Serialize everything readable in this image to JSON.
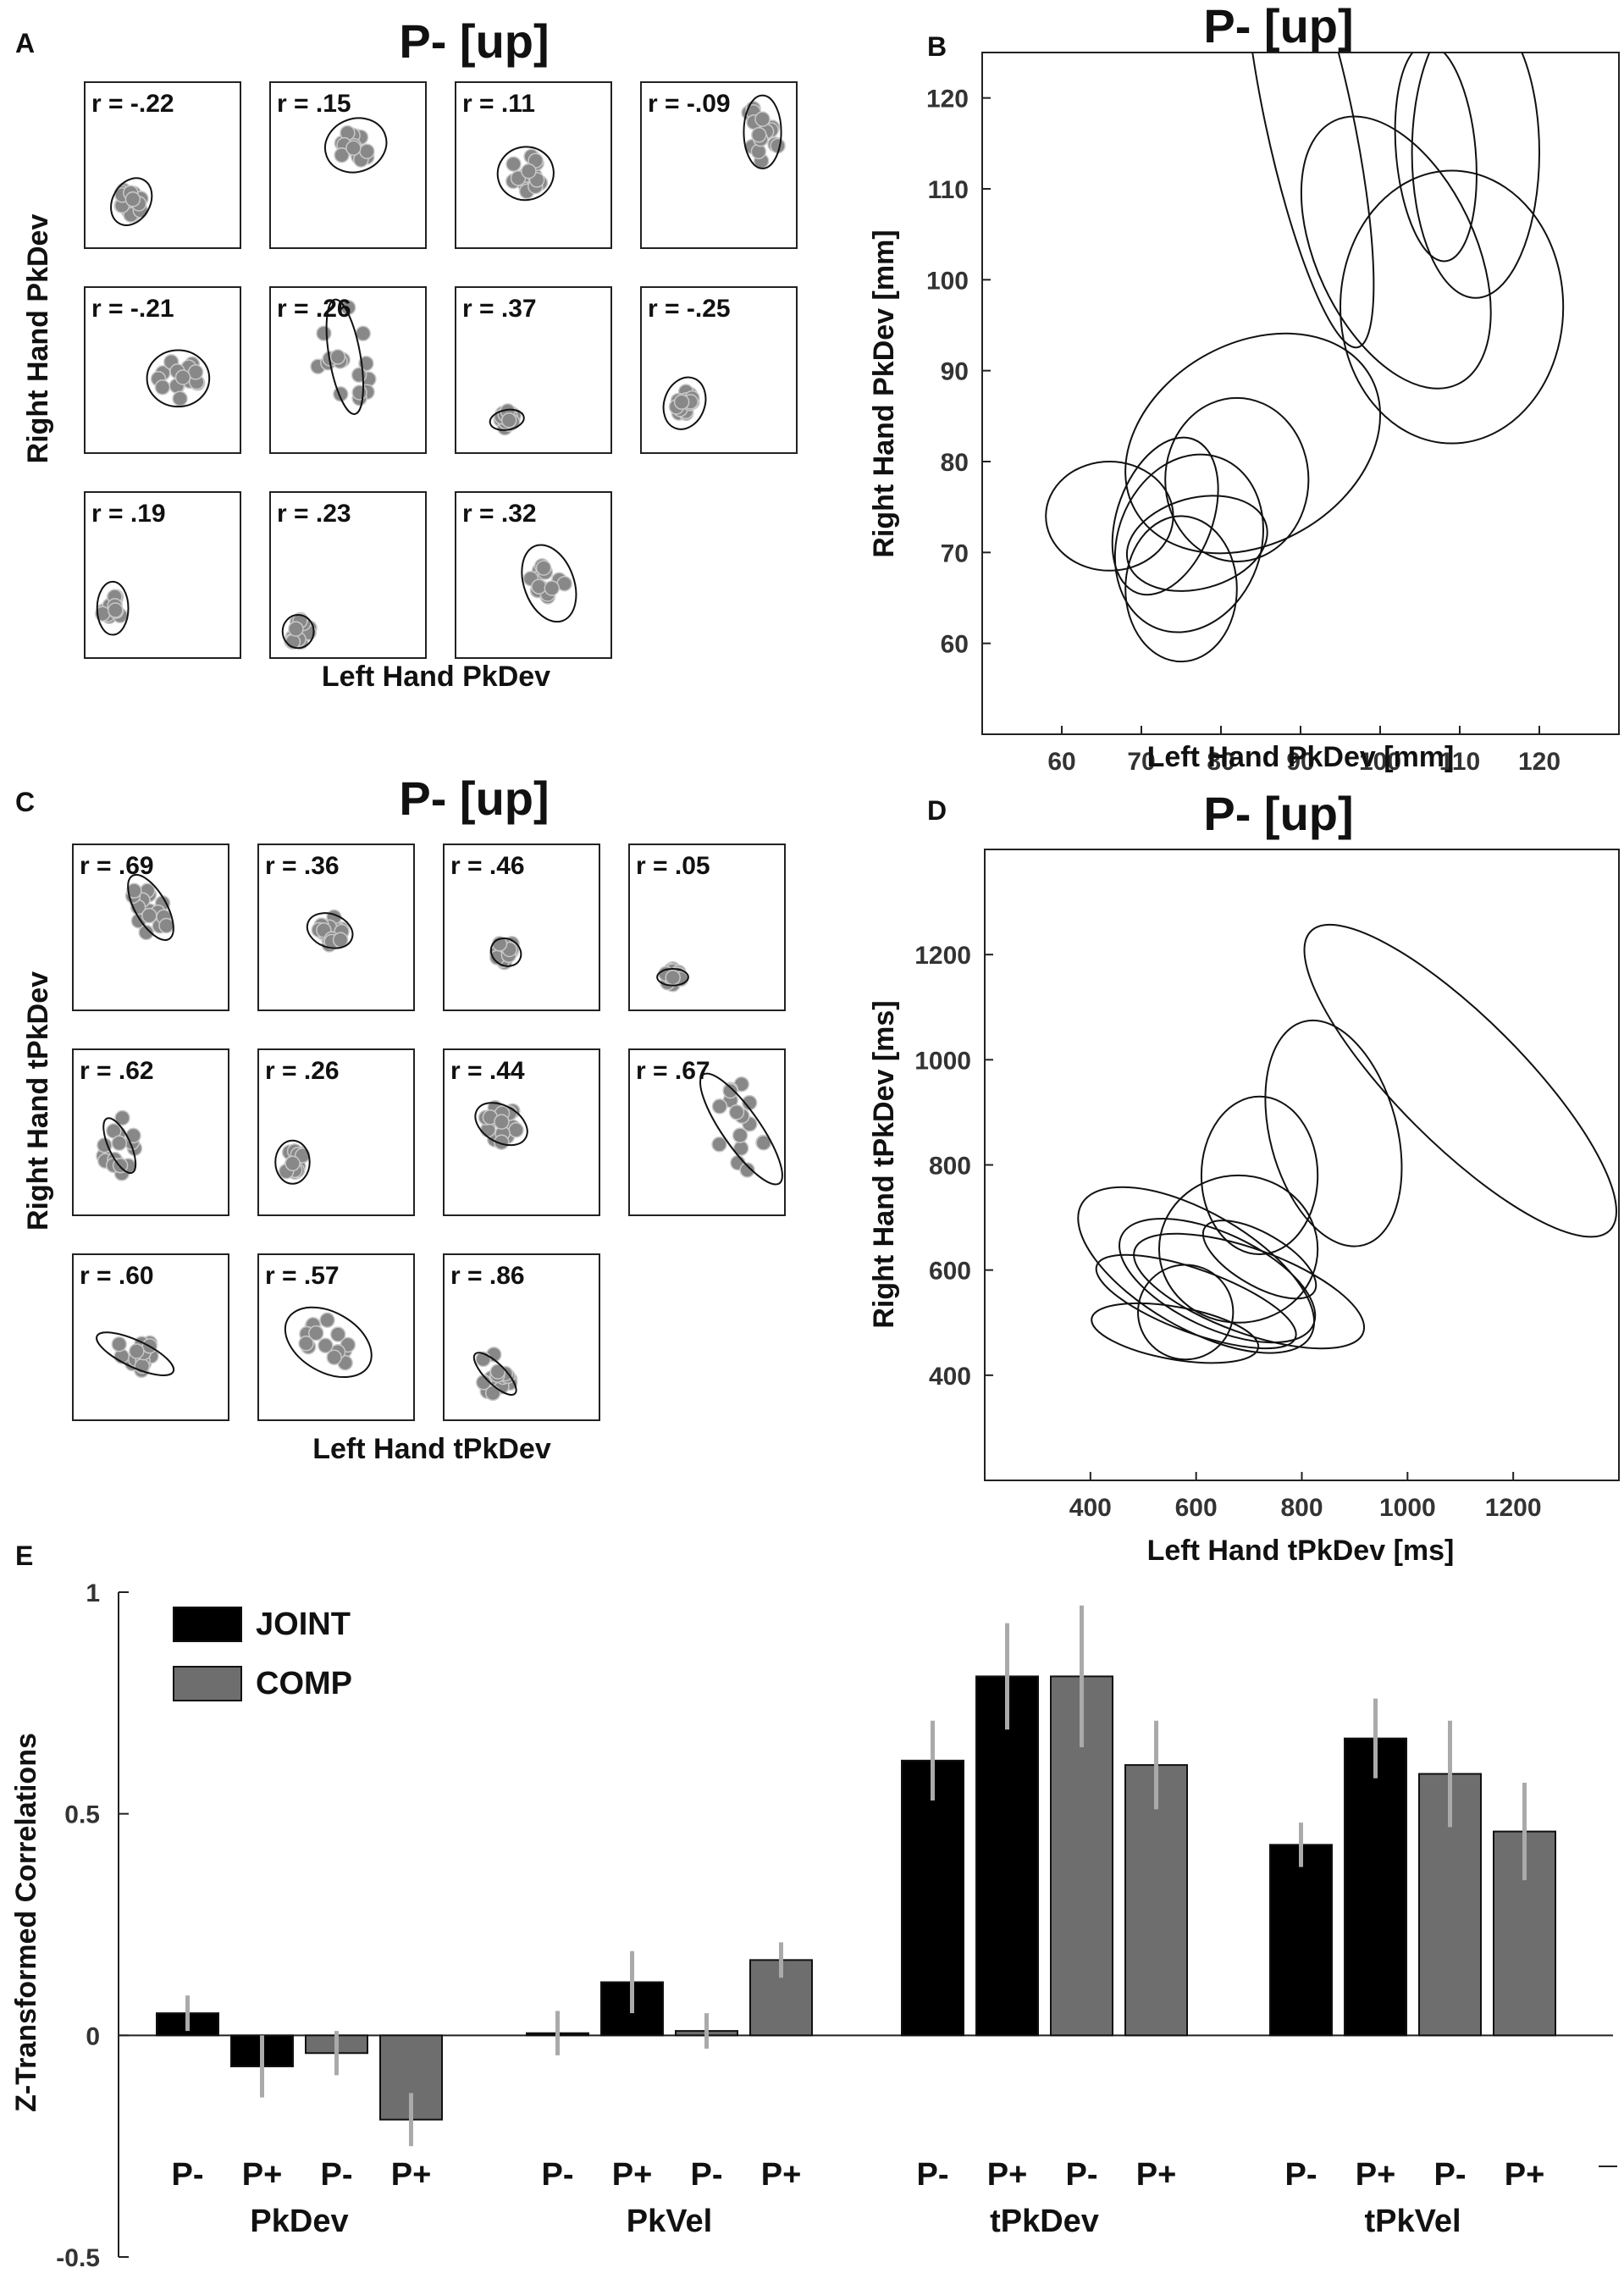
{
  "panel_labels": {
    "A": "A",
    "B": "B",
    "C": "C",
    "D": "D",
    "E": "E"
  },
  "chart_data": [
    {
      "id": "A",
      "type": "scatter",
      "title": "P- [up]",
      "xlabel": "Left Hand PkDev",
      "ylabel": "Right Hand PkDev",
      "subplots": [
        {
          "r": "r = -.22",
          "cx": 0.3,
          "cy": 0.28,
          "rx": 0.12,
          "ry": 0.15,
          "angle": -30,
          "spread": 0.16
        },
        {
          "r": "r = .15",
          "cx": 0.55,
          "cy": 0.62,
          "rx": 0.2,
          "ry": 0.16,
          "angle": 20,
          "spread": 0.2
        },
        {
          "r": "r = .11",
          "cx": 0.45,
          "cy": 0.45,
          "rx": 0.18,
          "ry": 0.16,
          "angle": 10,
          "spread": 0.2
        },
        {
          "r": "r = -.09",
          "cx": 0.78,
          "cy": 0.7,
          "rx": 0.12,
          "ry": 0.22,
          "angle": 0,
          "spread": 0.2
        },
        {
          "r": "r = -.21",
          "cx": 0.6,
          "cy": 0.45,
          "rx": 0.2,
          "ry": 0.17,
          "angle": 0,
          "spread": 0.24
        },
        {
          "r": "r = .26",
          "cx": 0.48,
          "cy": 0.58,
          "rx": 0.1,
          "ry": 0.35,
          "angle": 10,
          "spread": 0.34
        },
        {
          "r": "r = .37",
          "cx": 0.33,
          "cy": 0.2,
          "rx": 0.11,
          "ry": 0.06,
          "angle": 10,
          "spread": 0.1
        },
        {
          "r": "r = -.25",
          "cx": 0.28,
          "cy": 0.3,
          "rx": 0.13,
          "ry": 0.16,
          "angle": -20,
          "spread": 0.14
        },
        {
          "r": "r = .19",
          "cx": 0.18,
          "cy": 0.3,
          "rx": 0.1,
          "ry": 0.16,
          "angle": 0,
          "spread": 0.14
        },
        {
          "r": "r = .23",
          "cx": 0.18,
          "cy": 0.16,
          "rx": 0.1,
          "ry": 0.1,
          "angle": 0,
          "spread": 0.14
        },
        {
          "r": "r = .32",
          "cx": 0.6,
          "cy": 0.45,
          "rx": 0.16,
          "ry": 0.24,
          "angle": 20,
          "spread": 0.22
        }
      ]
    },
    {
      "id": "B",
      "type": "line",
      "title": "P- [up]",
      "xlabel": "Left Hand PkDev [mm]",
      "ylabel": "Right Hand PkDev [mm]",
      "xlim": [
        50,
        130
      ],
      "ylim": [
        50,
        125
      ],
      "xticks": [
        60,
        70,
        80,
        90,
        100,
        110,
        120
      ],
      "yticks": [
        60,
        70,
        80,
        90,
        100,
        110,
        120
      ],
      "ellipses": [
        {
          "cx": 91,
          "cy": 118,
          "rx": 5.5,
          "ry": 26,
          "angle": 12
        },
        {
          "cx": 107,
          "cy": 114,
          "rx": 5,
          "ry": 12,
          "angle": 5
        },
        {
          "cx": 112,
          "cy": 114,
          "rx": 8,
          "ry": 16,
          "angle": 0
        },
        {
          "cx": 102,
          "cy": 103,
          "rx": 10,
          "ry": 16,
          "angle": 25
        },
        {
          "cx": 109,
          "cy": 97,
          "rx": 14,
          "ry": 15,
          "angle": 0
        },
        {
          "cx": 84,
          "cy": 82,
          "rx": 17,
          "ry": 11,
          "angle": 30
        },
        {
          "cx": 82,
          "cy": 78,
          "rx": 9,
          "ry": 9,
          "angle": 0
        },
        {
          "cx": 66,
          "cy": 74,
          "rx": 8,
          "ry": 6,
          "angle": 0
        },
        {
          "cx": 73,
          "cy": 74,
          "rx": 6,
          "ry": 9,
          "angle": -20
        },
        {
          "cx": 76,
          "cy": 71,
          "rx": 9,
          "ry": 10,
          "angle": -20
        },
        {
          "cx": 75,
          "cy": 66,
          "rx": 7,
          "ry": 8,
          "angle": 0
        },
        {
          "cx": 77,
          "cy": 71,
          "rx": 9,
          "ry": 5,
          "angle": 15
        }
      ]
    },
    {
      "id": "C",
      "type": "scatter",
      "title": "P- [up]",
      "xlabel": "Left Hand tPkDev",
      "ylabel": "Right Hand tPkDev",
      "subplots": [
        {
          "r": "r = .69",
          "cx": 0.5,
          "cy": 0.62,
          "rx": 0.1,
          "ry": 0.22,
          "angle": 30,
          "spread": 0.22
        },
        {
          "r": "r = .36",
          "cx": 0.46,
          "cy": 0.48,
          "rx": 0.15,
          "ry": 0.1,
          "angle": -20,
          "spread": 0.16
        },
        {
          "r": "r = .46",
          "cx": 0.4,
          "cy": 0.35,
          "rx": 0.1,
          "ry": 0.08,
          "angle": -30,
          "spread": 0.12
        },
        {
          "r": "r = .05",
          "cx": 0.28,
          "cy": 0.2,
          "rx": 0.1,
          "ry": 0.05,
          "angle": 0,
          "spread": 0.1
        },
        {
          "r": "r = .62",
          "cx": 0.3,
          "cy": 0.42,
          "rx": 0.07,
          "ry": 0.18,
          "angle": 25,
          "spread": 0.2
        },
        {
          "r": "r = .26",
          "cx": 0.22,
          "cy": 0.32,
          "rx": 0.11,
          "ry": 0.13,
          "angle": 0,
          "spread": 0.14
        },
        {
          "r": "r = .44",
          "cx": 0.37,
          "cy": 0.55,
          "rx": 0.18,
          "ry": 0.11,
          "angle": -30,
          "spread": 0.2
        },
        {
          "r": "r = .67",
          "cx": 0.72,
          "cy": 0.52,
          "rx": 0.12,
          "ry": 0.4,
          "angle": 35,
          "spread": 0.3
        },
        {
          "r": "r = .60",
          "cx": 0.4,
          "cy": 0.4,
          "rx": 0.27,
          "ry": 0.08,
          "angle": -25,
          "spread": 0.22
        },
        {
          "r": "r = .57",
          "cx": 0.45,
          "cy": 0.47,
          "rx": 0.3,
          "ry": 0.18,
          "angle": -30,
          "spread": 0.3
        },
        {
          "r": "r = .86",
          "cx": 0.33,
          "cy": 0.28,
          "rx": 0.18,
          "ry": 0.06,
          "angle": -45,
          "spread": 0.22
        }
      ]
    },
    {
      "id": "D",
      "type": "line",
      "title": "P- [up]",
      "xlabel": "Left Hand tPkDev [ms]",
      "ylabel": "Right Hand tPkDev [ms]",
      "xlim": [
        200,
        1400
      ],
      "ylim": [
        200,
        1400
      ],
      "xticks": [
        400,
        600,
        800,
        1000,
        1200
      ],
      "yticks": [
        400,
        600,
        800,
        1000,
        1200
      ],
      "ellipses": [
        {
          "cx": 1100,
          "cy": 960,
          "rx": 400,
          "ry": 120,
          "angle": -45
        },
        {
          "cx": 860,
          "cy": 860,
          "rx": 120,
          "ry": 220,
          "angle": 15
        },
        {
          "cx": 720,
          "cy": 780,
          "rx": 110,
          "ry": 150,
          "angle": 0
        },
        {
          "cx": 680,
          "cy": 640,
          "rx": 150,
          "ry": 140,
          "angle": 0
        },
        {
          "cx": 600,
          "cy": 600,
          "rx": 250,
          "ry": 110,
          "angle": -30
        },
        {
          "cx": 640,
          "cy": 580,
          "rx": 200,
          "ry": 90,
          "angle": -25
        },
        {
          "cx": 700,
          "cy": 560,
          "rx": 230,
          "ry": 80,
          "angle": -20
        },
        {
          "cx": 560,
          "cy": 480,
          "rx": 160,
          "ry": 50,
          "angle": -10
        },
        {
          "cx": 580,
          "cy": 520,
          "rx": 90,
          "ry": 90,
          "angle": 0
        },
        {
          "cx": 720,
          "cy": 620,
          "rx": 120,
          "ry": 50,
          "angle": -30
        },
        {
          "cx": 600,
          "cy": 540,
          "rx": 200,
          "ry": 60,
          "angle": -20
        }
      ]
    },
    {
      "id": "E",
      "type": "bar",
      "ylabel": "Z-Transformed Correlations",
      "ylim": [
        -0.5,
        1.0
      ],
      "yticks": [
        "-0.5",
        "0",
        "0.5",
        "1"
      ],
      "ytick_values": [
        -0.5,
        0,
        0.5,
        1.0
      ],
      "legend": [
        {
          "name": "JOINT",
          "color": "#000000"
        },
        {
          "name": "COMP",
          "color": "#6e6e6e"
        }
      ],
      "error_color": "#aaaaaa",
      "groups": [
        {
          "name": "PkDev",
          "bars": [
            {
              "label": "P-",
              "series": "JOINT",
              "value": 0.05,
              "err": 0.04
            },
            {
              "label": "P+",
              "series": "JOINT",
              "value": -0.07,
              "err": 0.07
            },
            {
              "label": "P-",
              "series": "COMP",
              "value": -0.04,
              "err": 0.05
            },
            {
              "label": "P+",
              "series": "COMP",
              "value": -0.19,
              "err": 0.06
            }
          ]
        },
        {
          "name": "PkVel",
          "bars": [
            {
              "label": "P-",
              "series": "JOINT",
              "value": 0.005,
              "err": 0.05
            },
            {
              "label": "P+",
              "series": "JOINT",
              "value": 0.12,
              "err": 0.07
            },
            {
              "label": "P-",
              "series": "COMP",
              "value": 0.01,
              "err": 0.04
            },
            {
              "label": "P+",
              "series": "COMP",
              "value": 0.17,
              "err": 0.04
            }
          ]
        },
        {
          "name": "tPkDev",
          "bars": [
            {
              "label": "P-",
              "series": "JOINT",
              "value": 0.62,
              "err": 0.09
            },
            {
              "label": "P+",
              "series": "JOINT",
              "value": 0.81,
              "err": 0.12
            },
            {
              "label": "P-",
              "series": "COMP",
              "value": 0.81,
              "err": 0.16
            },
            {
              "label": "P+",
              "series": "COMP",
              "value": 0.61,
              "err": 0.1
            }
          ]
        },
        {
          "name": "tPkVel",
          "bars": [
            {
              "label": "P-",
              "series": "JOINT",
              "value": 0.43,
              "err": 0.05
            },
            {
              "label": "P+",
              "series": "JOINT",
              "value": 0.67,
              "err": 0.09
            },
            {
              "label": "P-",
              "series": "COMP",
              "value": 0.59,
              "err": 0.12
            },
            {
              "label": "P+",
              "series": "COMP",
              "value": 0.46,
              "err": 0.11
            }
          ]
        }
      ]
    }
  ]
}
